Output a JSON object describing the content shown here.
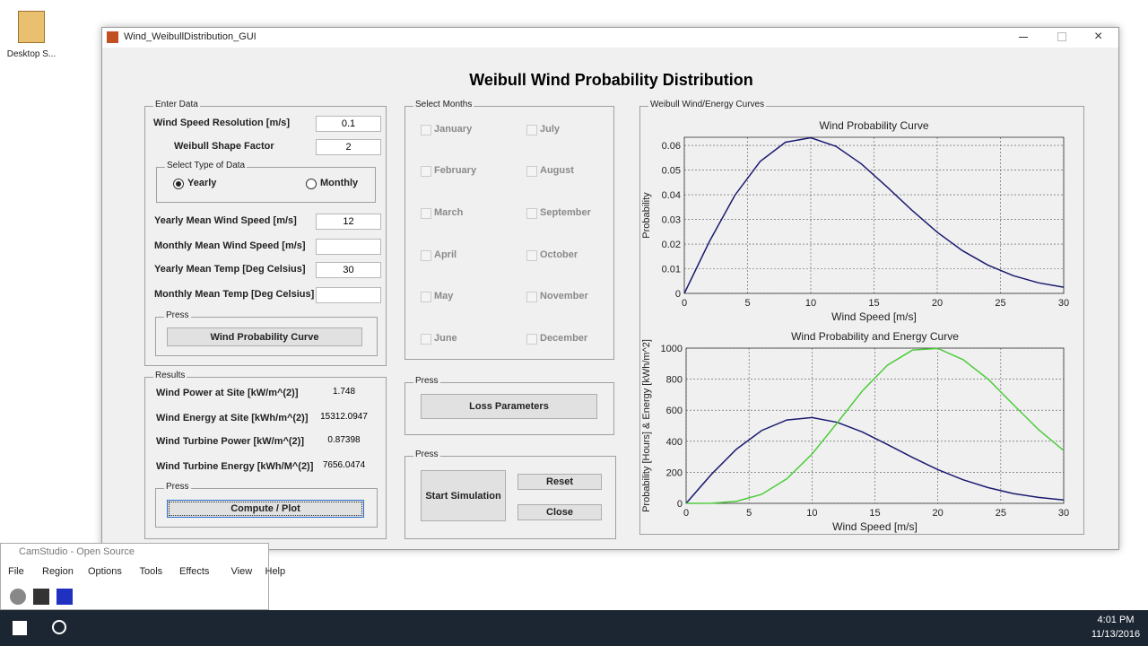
{
  "desktop": {
    "icon_label": "Desktop S..."
  },
  "window": {
    "title": "Wind_WeibullDistribution_GUI",
    "heading": "Weibull Wind Probability Distribution"
  },
  "enter_data": {
    "title": "Enter Data",
    "fields": [
      {
        "label": "Wind Speed Resolution [m/s]",
        "value": "0.1"
      },
      {
        "label": "Weibull Shape Factor",
        "value": "2"
      },
      {
        "label": "Yearly Mean Wind Speed [m/s]",
        "value": "12"
      },
      {
        "label": "Monthly Mean Wind Speed [m/s]"
      },
      {
        "label": "Yearly Mean Temp [Deg Celsius]",
        "value": "30"
      },
      {
        "label": "Monthly Mean Temp [Deg Celsius]"
      }
    ],
    "data_type": {
      "title": "Select Type of Data",
      "options": [
        "Yearly",
        "Monthly"
      ],
      "selected": 0
    },
    "press_label": "Press",
    "button": "Wind Probability Curve"
  },
  "results": {
    "title": "Results",
    "rows": [
      {
        "label": "Wind Power at Site [kW/m^(2)]",
        "value": "1.748"
      },
      {
        "label": "Wind Energy at Site [kWh/m^(2)]",
        "value": "15312.0947"
      },
      {
        "label": "Wind Turbine Power [kW/m^(2)]",
        "value": "0.87398"
      },
      {
        "label": "Wind Turbine Energy [kWh/M^(2)]",
        "value": "7656.0474"
      }
    ],
    "press_label": "Press",
    "button": "Compute / Plot"
  },
  "months": {
    "title": "Select Months",
    "items": [
      "January",
      "February",
      "March",
      "April",
      "May",
      "June",
      "July",
      "August",
      "September",
      "October",
      "November",
      "December"
    ]
  },
  "loss": {
    "press_label": "Press",
    "button": "Loss Parameters"
  },
  "simulation": {
    "press_label": "Press",
    "buttons": [
      "Start Simulation",
      "Reset",
      "Close"
    ]
  },
  "curves": {
    "title": "Weibull Wind/Energy Curves",
    "charts": [
      {
        "type": "line",
        "title": "Wind Probability Curve",
        "x_label": "Wind Speed [m/s]",
        "y_label": "Probability",
        "x": [
          0,
          2,
          4,
          6,
          8,
          10,
          12,
          14,
          16,
          18,
          20,
          22,
          24,
          26,
          28,
          30
        ],
        "series": [
          {
            "color": "#1a1a70",
            "values": [
              0,
              0.0212,
              0.0398,
              0.0535,
              0.0613,
              0.0631,
              0.0596,
              0.0525,
              0.0433,
              0.0337,
              0.0248,
              0.0173,
              0.0115,
              0.0072,
              0.0043,
              0.0025
            ]
          }
        ],
        "xlim": [
          0,
          30
        ],
        "ylim": [
          0,
          0.0633
        ],
        "xticks": [
          0,
          5,
          10,
          15,
          20,
          25,
          30
        ],
        "yticks": [
          0,
          0.01,
          0.02,
          0.03,
          0.04,
          0.05,
          0.06
        ],
        "grid": true
      },
      {
        "type": "line",
        "title": "Wind Probability and Energy Curve",
        "x_label": "Wind Speed [m/s]",
        "y_label": "Probability [Hours] & Energy [kWh/m^2]",
        "x": [
          0,
          2,
          4,
          6,
          8,
          10,
          12,
          14,
          16,
          18,
          20,
          22,
          24,
          26,
          28,
          30
        ],
        "series": [
          {
            "color": "#1a1a70",
            "values": [
              0,
              186,
              349,
              469,
              537,
              553,
              522,
              460,
              379,
              295,
              217,
              152,
              101,
              63,
              38,
              22
            ]
          },
          {
            "color": "#4ccc3a",
            "values": [
              0,
              1,
              13,
              58,
              158,
              317,
              518,
              724,
              890,
              988,
              998,
              926,
              800,
              636,
              475,
              340
            ]
          }
        ],
        "xlim": [
          0,
          30
        ],
        "ylim": [
          0,
          1000
        ],
        "xticks": [
          0,
          5,
          10,
          15,
          20,
          25,
          30
        ],
        "yticks": [
          0,
          200,
          400,
          600,
          800,
          1000
        ],
        "grid": true
      }
    ]
  },
  "camstudio": {
    "title": "CamStudio - Open Source",
    "menu": [
      "File",
      "Region",
      "Options",
      "Tools",
      "Effects",
      "View",
      "Help"
    ]
  },
  "taskbar": {
    "time": "4:01 PM",
    "date": "11/13/2016"
  }
}
